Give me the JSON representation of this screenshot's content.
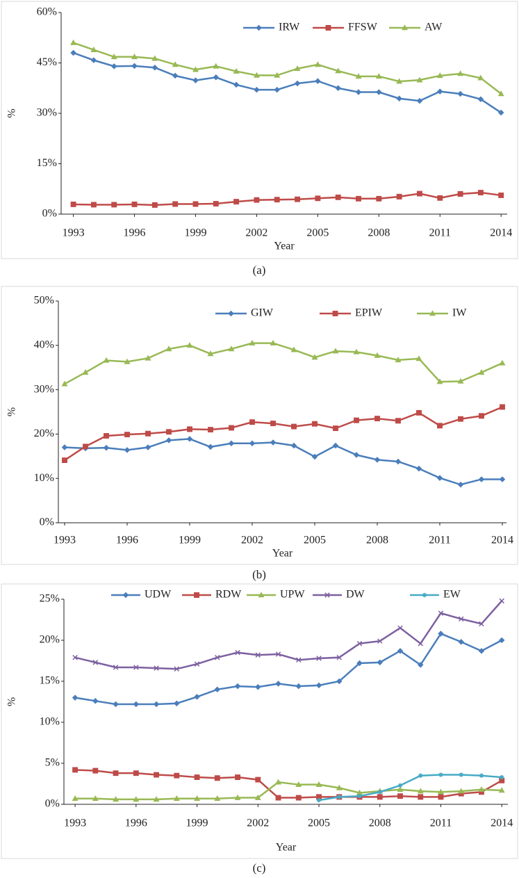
{
  "chart_data": [
    {
      "type": "line",
      "caption": "(a)",
      "x_label": "Year",
      "y_label": "%",
      "x": [
        1993,
        1994,
        1995,
        1996,
        1997,
        1998,
        1999,
        2000,
        2001,
        2002,
        2003,
        2004,
        2005,
        2006,
        2007,
        2008,
        2009,
        2010,
        2011,
        2012,
        2013,
        2014
      ],
      "xlim": [
        1992.4,
        2014.3
      ],
      "xticks": [
        1993,
        1996,
        1999,
        2002,
        2005,
        2008,
        2011,
        2014
      ],
      "ylim": [
        0,
        60
      ],
      "yticks": [
        {
          "value": 0,
          "label": "0%"
        },
        {
          "value": 15,
          "label": "15%"
        },
        {
          "value": 30,
          "label": "30%"
        },
        {
          "value": 45,
          "label": "45%"
        },
        {
          "value": 60,
          "label": "60%"
        }
      ],
      "series": [
        {
          "name": "IRW",
          "color": "#4a7ebb",
          "marker": "diamond",
          "values": [
            48,
            45.8,
            44,
            44.1,
            43.6,
            41.2,
            39.8,
            40.7,
            38.5,
            37,
            37,
            38.9,
            39.6,
            37.5,
            36.3,
            36.3,
            34.4,
            33.7,
            36.5,
            35.8,
            34.2,
            30.2
          ]
        },
        {
          "name": "FFSW",
          "color": "#be4b48",
          "marker": "square",
          "values": [
            2.9,
            2.8,
            2.8,
            2.9,
            2.7,
            3,
            3,
            3.1,
            3.7,
            4.2,
            4.3,
            4.4,
            4.7,
            5,
            4.6,
            4.6,
            5.2,
            6.1,
            4.8,
            6,
            6.4,
            5.6
          ]
        },
        {
          "name": "AW",
          "color": "#98b954",
          "marker": "triangle",
          "values": [
            51,
            48.9,
            46.8,
            46.8,
            46.3,
            44.5,
            43,
            44,
            42.5,
            41.3,
            41.3,
            43.3,
            44.5,
            42.6,
            41,
            41,
            39.5,
            39.9,
            41.2,
            41.8,
            40.5,
            35.8
          ]
        }
      ]
    },
    {
      "type": "line",
      "caption": "(b)",
      "x_label": "Year",
      "y_label": "%",
      "x": [
        1993,
        1994,
        1995,
        1996,
        1997,
        1998,
        1999,
        2000,
        2001,
        2002,
        2003,
        2004,
        2005,
        2006,
        2007,
        2008,
        2009,
        2010,
        2011,
        2012,
        2013,
        2014
      ],
      "xlim": [
        1992.7,
        2014.2
      ],
      "xticks": [
        1993,
        1996,
        1999,
        2002,
        2005,
        2008,
        2011,
        2014
      ],
      "ylim": [
        0,
        50
      ],
      "yticks": [
        {
          "value": 0,
          "label": "0%"
        },
        {
          "value": 10,
          "label": "10%"
        },
        {
          "value": 20,
          "label": "20%"
        },
        {
          "value": 30,
          "label": "30%"
        },
        {
          "value": 40,
          "label": "40%"
        },
        {
          "value": 50,
          "label": "50%"
        }
      ],
      "series": [
        {
          "name": "GIW",
          "color": "#4a7ebb",
          "marker": "diamond",
          "values": [
            17,
            16.8,
            16.9,
            16.4,
            17,
            18.6,
            18.9,
            17.1,
            17.9,
            17.9,
            18.1,
            17.4,
            14.9,
            17.4,
            15.3,
            14.2,
            13.8,
            12.2,
            10.1,
            8.6,
            9.8,
            9.8
          ]
        },
        {
          "name": "EPIW",
          "color": "#be4b48",
          "marker": "square",
          "values": [
            14.1,
            17.2,
            19.6,
            19.9,
            20.1,
            20.5,
            21.1,
            21,
            21.4,
            22.7,
            22.4,
            21.7,
            22.3,
            21.3,
            23.1,
            23.5,
            23,
            24.8,
            21.9,
            23.4,
            24.1,
            26.1
          ]
        },
        {
          "name": "IW",
          "color": "#98b954",
          "marker": "triangle",
          "values": [
            31.3,
            33.9,
            36.6,
            36.3,
            37.1,
            39.2,
            40,
            38.1,
            39.2,
            40.5,
            40.5,
            39,
            37.3,
            38.7,
            38.5,
            37.7,
            36.7,
            37,
            31.8,
            31.9,
            33.9,
            36
          ]
        }
      ]
    },
    {
      "type": "line",
      "caption": "(c)",
      "x_label": "Year",
      "y_label": "%",
      "x": [
        1993,
        1994,
        1995,
        1996,
        1997,
        1998,
        1999,
        2000,
        2001,
        2002,
        2003,
        2004,
        2005,
        2006,
        2007,
        2008,
        2009,
        2010,
        2011,
        2012,
        2013,
        2014
      ],
      "xlim": [
        1992.45,
        2014.3
      ],
      "xticks": [
        1993,
        1996,
        1999,
        2002,
        2005,
        2008,
        2011,
        2014
      ],
      "ylim": [
        0,
        25
      ],
      "yticks": [
        {
          "value": 0,
          "label": "0%"
        },
        {
          "value": 5,
          "label": "5%"
        },
        {
          "value": 10,
          "label": "10%"
        },
        {
          "value": 15,
          "label": "15%"
        },
        {
          "value": 20,
          "label": "20%"
        },
        {
          "value": 25,
          "label": "25%"
        }
      ],
      "series": [
        {
          "name": "UDW",
          "color": "#4a7ebb",
          "marker": "diamond",
          "values": [
            13,
            12.6,
            12.2,
            12.2,
            12.2,
            12.3,
            13.1,
            14,
            14.4,
            14.3,
            14.7,
            14.4,
            14.5,
            15,
            17.2,
            17.3,
            18.7,
            17,
            20.8,
            19.8,
            18.7,
            20
          ]
        },
        {
          "name": "RDW",
          "color": "#be4b48",
          "marker": "square",
          "values": [
            4.2,
            4.1,
            3.8,
            3.8,
            3.6,
            3.5,
            3.3,
            3.2,
            3.3,
            3,
            0.8,
            0.8,
            0.9,
            0.9,
            0.9,
            0.9,
            1,
            0.9,
            0.9,
            1.3,
            1.5,
            2.9
          ]
        },
        {
          "name": "UPW",
          "color": "#98b954",
          "marker": "triangle",
          "values": [
            0.7,
            0.7,
            0.6,
            0.6,
            0.6,
            0.7,
            0.7,
            0.7,
            0.8,
            0.8,
            2.7,
            2.4,
            2.4,
            2,
            1.4,
            1.6,
            1.8,
            1.6,
            1.5,
            1.6,
            1.8,
            1.7
          ]
        },
        {
          "name": "DW",
          "color": "#7d60a0",
          "marker": "cross",
          "values": [
            17.9,
            17.3,
            16.7,
            16.7,
            16.6,
            16.5,
            17.1,
            17.9,
            18.5,
            18.2,
            18.3,
            17.6,
            17.8,
            17.9,
            19.6,
            19.9,
            21.5,
            19.6,
            23.3,
            22.6,
            22,
            24.8
          ]
        },
        {
          "name": "EW",
          "color": "#46aac5",
          "marker": "star",
          "values": [
            null,
            null,
            null,
            null,
            null,
            null,
            null,
            null,
            null,
            null,
            null,
            null,
            0.5,
            0.9,
            1,
            1.5,
            2.3,
            3.5,
            3.6,
            3.6,
            3.5,
            3.3
          ]
        }
      ]
    }
  ]
}
